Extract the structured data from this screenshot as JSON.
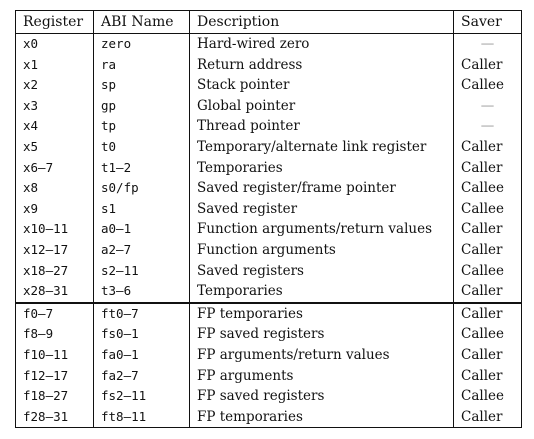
{
  "table": {
    "headers": [
      "Register",
      "ABI Name",
      "Description",
      "Saver"
    ],
    "integer_rows": [
      {
        "register": "x0",
        "abi": "zero",
        "description": "Hard-wired zero",
        "saver": "—"
      },
      {
        "register": "x1",
        "abi": "ra",
        "description": "Return address",
        "saver": "Caller"
      },
      {
        "register": "x2",
        "abi": "sp",
        "description": "Stack pointer",
        "saver": "Callee"
      },
      {
        "register": "x3",
        "abi": "gp",
        "description": "Global pointer",
        "saver": "—"
      },
      {
        "register": "x4",
        "abi": "tp",
        "description": "Thread pointer",
        "saver": "—"
      },
      {
        "register": "x5",
        "abi": "t0",
        "description": "Temporary/alternate link register",
        "saver": "Caller"
      },
      {
        "register": "x6–7",
        "abi": "t1–2",
        "description": "Temporaries",
        "saver": "Caller"
      },
      {
        "register": "x8",
        "abi": "s0/fp",
        "description": "Saved register/frame pointer",
        "saver": "Callee"
      },
      {
        "register": "x9",
        "abi": "s1",
        "description": "Saved register",
        "saver": "Callee"
      },
      {
        "register": "x10–11",
        "abi": "a0–1",
        "description": "Function arguments/return values",
        "saver": "Caller"
      },
      {
        "register": "x12–17",
        "abi": "a2–7",
        "description": "Function arguments",
        "saver": "Caller"
      },
      {
        "register": "x18–27",
        "abi": "s2–11",
        "description": "Saved registers",
        "saver": "Callee"
      },
      {
        "register": "x28–31",
        "abi": "t3–6",
        "description": "Temporaries",
        "saver": "Caller"
      }
    ],
    "fp_rows": [
      {
        "register": "f0–7",
        "abi": "ft0–7",
        "description": "FP temporaries",
        "saver": "Caller"
      },
      {
        "register": "f8–9",
        "abi": "fs0–1",
        "description": "FP saved registers",
        "saver": "Callee"
      },
      {
        "register": "f10–11",
        "abi": "fa0–1",
        "description": "FP arguments/return values",
        "saver": "Caller"
      },
      {
        "register": "f12–17",
        "abi": "fa2–7",
        "description": "FP arguments",
        "saver": "Caller"
      },
      {
        "register": "f18–27",
        "abi": "fs2–11",
        "description": "FP saved registers",
        "saver": "Callee"
      },
      {
        "register": "f28–31",
        "abi": "ft8–11",
        "description": "FP temporaries",
        "saver": "Caller"
      }
    ]
  }
}
